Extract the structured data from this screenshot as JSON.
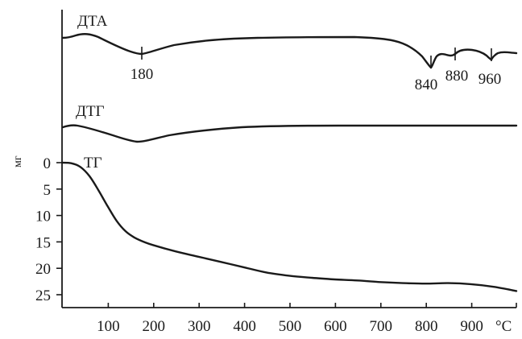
{
  "chart_data": {
    "type": "line",
    "temperature_unit": "°C",
    "x_ticks": [
      100,
      200,
      300,
      400,
      500,
      600,
      700,
      800,
      900
    ],
    "xlim": [
      0,
      1000
    ],
    "curves": [
      {
        "name": "ДТА",
        "peaks": [
          {
            "x": 180,
            "label": "180"
          },
          {
            "x": 840,
            "label": "840"
          },
          {
            "x": 880,
            "label": "880"
          },
          {
            "x": 960,
            "label": "960"
          }
        ]
      },
      {
        "name": "ДТГ"
      },
      {
        "name": "ТГ",
        "unit": "мг",
        "y_ticks": [
          0,
          5,
          10,
          15,
          20,
          25
        ],
        "ylim": [
          0,
          25
        ],
        "inverted": true,
        "x": [
          0,
          20,
          40,
          60,
          80,
          100,
          120,
          140,
          160,
          180,
          200,
          250,
          300,
          350,
          400,
          450,
          500,
          550,
          600,
          650,
          700,
          750,
          800,
          850,
          900,
          950,
          1000
        ],
        "values": [
          0,
          0.1,
          0.8,
          2.5,
          5.2,
          8.2,
          11.0,
          13.0,
          14.2,
          15.0,
          15.6,
          16.8,
          17.8,
          18.8,
          19.8,
          20.8,
          21.4,
          21.8,
          22.1,
          22.3,
          22.6,
          22.8,
          22.9,
          22.8,
          23.0,
          23.5,
          24.3
        ]
      }
    ]
  }
}
